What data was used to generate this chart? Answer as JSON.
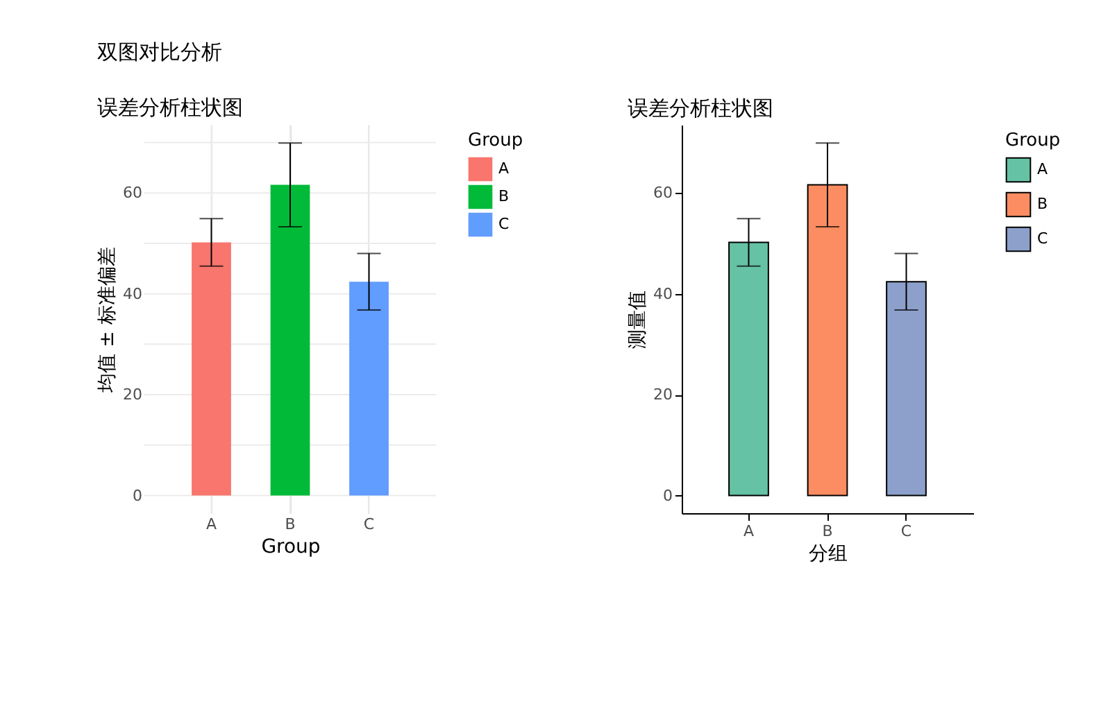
{
  "chart_data": [
    {
      "type": "bar",
      "title": "误差分析柱状图",
      "xlabel": "Group",
      "ylabel": "均值 ± 标准偏差",
      "categories": [
        "A",
        "B",
        "C"
      ],
      "series": [
        {
          "name": "A",
          "color": "#f8766d",
          "values": [
            50.2,
            null,
            null
          ],
          "errors": [
            4.7,
            null,
            null
          ]
        },
        {
          "name": "B",
          "color": "#00ba38",
          "values": [
            null,
            61.6,
            null
          ],
          "errors": [
            null,
            8.3,
            null
          ]
        },
        {
          "name": "C",
          "color": "#619cff",
          "values": [
            null,
            null,
            42.4
          ],
          "errors": [
            null,
            null,
            5.6
          ]
        }
      ],
      "ylim": [
        -3.5,
        73.5
      ],
      "yticks": [
        0,
        20,
        40,
        60
      ],
      "grid": true,
      "legend": "right",
      "legend_title": "Group",
      "annotations": [
        "双图对比分析"
      ]
    },
    {
      "type": "bar",
      "title": "误差分析柱状图",
      "xlabel": "分组",
      "ylabel": "测量值",
      "categories": [
        "A",
        "B",
        "C"
      ],
      "series": [
        {
          "name": "A",
          "color": "#66c2a5",
          "values": [
            50.2,
            null,
            null
          ],
          "errors": [
            4.7,
            null,
            null
          ]
        },
        {
          "name": "B",
          "color": "#fc8d62",
          "values": [
            null,
            61.6,
            null
          ],
          "errors": [
            null,
            8.3,
            null
          ]
        },
        {
          "name": "C",
          "color": "#8da0cb",
          "values": [
            null,
            null,
            42.4
          ],
          "errors": [
            null,
            null,
            5.6
          ]
        }
      ],
      "ylim": [
        -3.5,
        73.5
      ],
      "yticks": [
        0,
        20,
        40,
        60
      ],
      "grid": false,
      "legend": "right",
      "legend_title": "Group"
    }
  ]
}
